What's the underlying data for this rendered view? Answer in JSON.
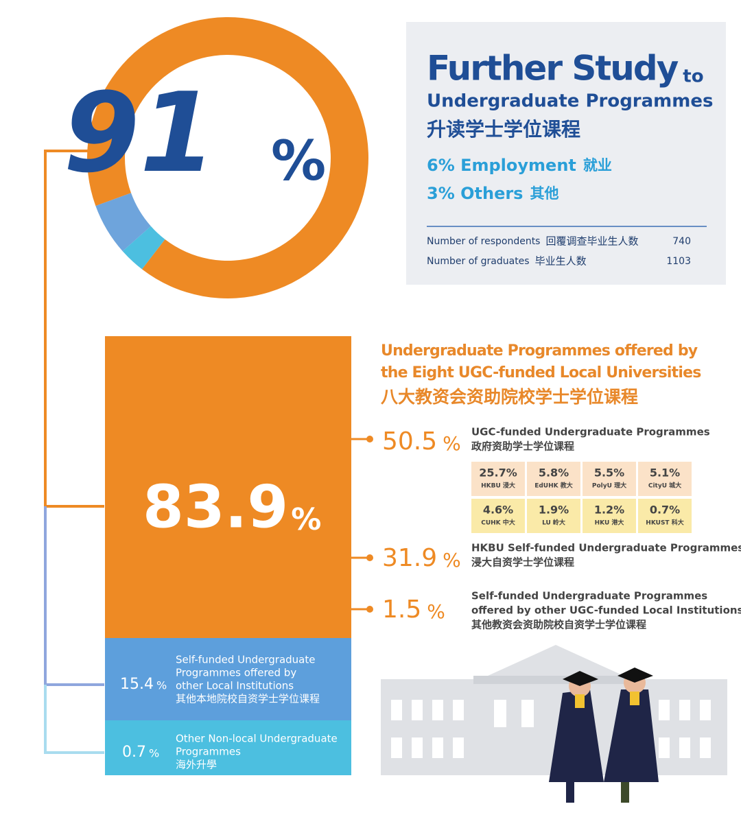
{
  "donut": {
    "values": [
      91,
      6,
      3
    ],
    "colors": [
      "#ee8a24",
      "#6ea4dc",
      "#4cbfe0"
    ]
  },
  "header": {
    "title": "Further Study",
    "title_to": "to",
    "subtitle": "Undergraduate Programmes",
    "subtitle_zh": "升读学士学位课程",
    "percent_sign": "%"
  },
  "other_outcomes": [
    {
      "label": "6% Employment",
      "label_zh": "就业"
    },
    {
      "label": "3% Others",
      "label_zh": "其他"
    }
  ],
  "stats": [
    {
      "label": "Number of respondents",
      "label_zh": "回覆调查毕业生人数",
      "value": "740"
    },
    {
      "label": "Number of graduates",
      "label_zh": "毕业生人数",
      "value": "1103"
    }
  ],
  "breakdown": [
    {
      "pct": "83.9"
    },
    {
      "pct": "15.4",
      "lines": [
        "Self-funded Undergraduate",
        "Programmes offered by",
        "other Local Institutions",
        "其他本地院校自资学士学位课程"
      ]
    },
    {
      "pct": "0.7",
      "lines": [
        "Other Non-local Undergraduate",
        "Programmes",
        "海外升學"
      ]
    }
  ],
  "ugc": {
    "heading": [
      "Undergraduate Programmes offered by",
      "the Eight UGC-funded Local Universities",
      "八大教资会资助院校学士学位课程"
    ],
    "items": [
      {
        "pct": "50.5",
        "lines": [
          "UGC-funded Undergraduate Programmes",
          "政府资助学士学位课程"
        ]
      },
      {
        "pct": "31.9",
        "lines": [
          "HKBU Self-funded Undergraduate Programmes",
          "浸大自资学士学位课程"
        ]
      },
      {
        "pct": "1.5",
        "lines": [
          "Self-funded Undergraduate Programmes",
          "offered by other UGC-funded Local Institutions",
          "其他教资会资助院校自资学士学位课程"
        ]
      }
    ],
    "universities": [
      {
        "pct": "25.7%",
        "name": "HKBU 浸大"
      },
      {
        "pct": "5.8%",
        "name": "EdUHK 教大"
      },
      {
        "pct": "5.5%",
        "name": "PolyU 理大"
      },
      {
        "pct": "5.1%",
        "name": "CityU 城大"
      },
      {
        "pct": "4.6%",
        "name": "CUHK 中大"
      },
      {
        "pct": "1.9%",
        "name": "LU 岭大"
      },
      {
        "pct": "1.2%",
        "name": "HKU 港大"
      },
      {
        "pct": "0.7%",
        "name": "HKUST 科大"
      }
    ]
  }
}
